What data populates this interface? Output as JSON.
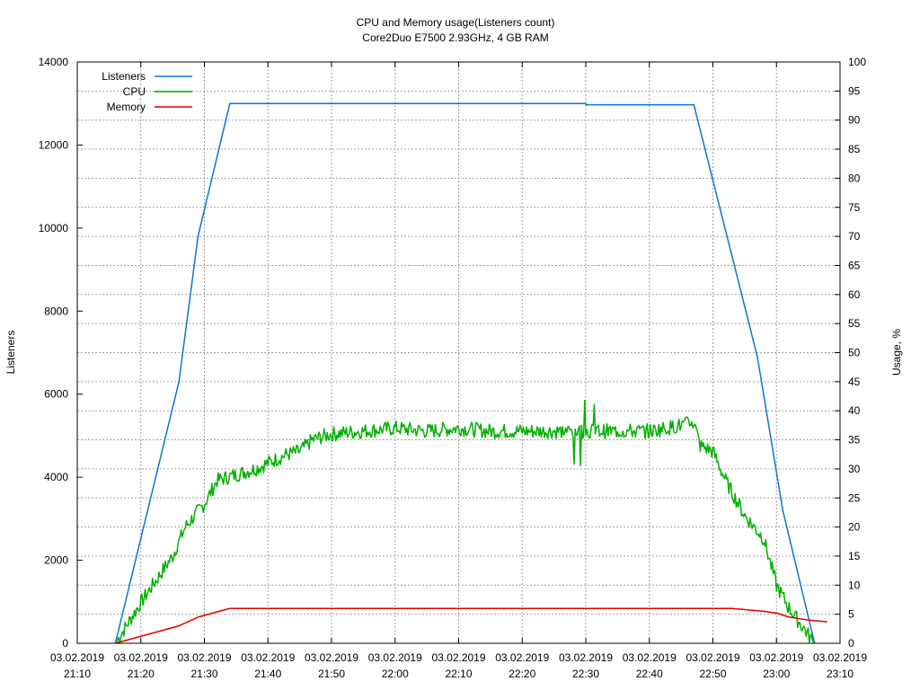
{
  "chart_data": {
    "type": "line",
    "title": "CPU and Memory usage(Listeners count)",
    "subtitle": "Core2Duo E7500 2.93GHz, 4 GB RAM",
    "ylabel": "Listeners",
    "y2label": "Usage, %",
    "x_time_range": [
      "21:10",
      "23:10"
    ],
    "x_ticks": [
      {
        "date": "03.02.2019",
        "time": "21:10"
      },
      {
        "date": "03.02.2019",
        "time": "21:20"
      },
      {
        "date": "03.02.2019",
        "time": "21:30"
      },
      {
        "date": "03.02.2019",
        "time": "21:40"
      },
      {
        "date": "03.02.2019",
        "time": "21:50"
      },
      {
        "date": "03.02.2019",
        "time": "22:00"
      },
      {
        "date": "03.02.2019",
        "time": "22:10"
      },
      {
        "date": "03.02.2019",
        "time": "22:20"
      },
      {
        "date": "03.02.2019",
        "time": "22:30"
      },
      {
        "date": "03.02.2019",
        "time": "22:40"
      },
      {
        "date": "03.02.2019",
        "time": "22:50"
      },
      {
        "date": "03.02.2019",
        "time": "23:00"
      },
      {
        "date": "03.02.2019",
        "time": "23:10"
      }
    ],
    "ylim": [
      0,
      14000
    ],
    "y_ticks": [
      "0",
      "2000",
      "4000",
      "6000",
      "8000",
      "10000",
      "12000",
      "14000"
    ],
    "y2lim": [
      0,
      100
    ],
    "y2_ticks": [
      "0",
      "5",
      "10",
      "15",
      "20",
      "25",
      "30",
      "35",
      "40",
      "45",
      "50",
      "55",
      "60",
      "65",
      "70",
      "75",
      "80",
      "85",
      "90",
      "95",
      "100"
    ],
    "grid": true,
    "legend_position": "top-left",
    "series": [
      {
        "name": "Listeners",
        "axis": "y",
        "color": "#0a74d8",
        "x": [
          "21:16",
          "21:26",
          "21:29",
          "21:34",
          "22:30",
          "22:30",
          "22:47",
          "22:57",
          "23:01",
          "23:06"
        ],
        "y": [
          0,
          6300,
          9800,
          13000,
          13000,
          12970,
          12970,
          6900,
          3200,
          0
        ]
      },
      {
        "name": "CPU",
        "axis": "y2",
        "color": "#00b000",
        "x": [
          "21:16",
          "21:20",
          "21:25",
          "21:27",
          "21:30",
          "21:32",
          "21:35",
          "21:38",
          "21:40",
          "21:43",
          "21:45",
          "21:47",
          "21:50",
          "21:55",
          "22:00",
          "22:05",
          "22:10",
          "22:15",
          "22:20",
          "22:25",
          "22:30",
          "22:35",
          "22:40",
          "22:45",
          "22:47",
          "22:48",
          "22:50",
          "22:52",
          "22:55",
          "22:58",
          "23:00",
          "23:02",
          "23:04",
          "23:06"
        ],
        "y": [
          0,
          7,
          15,
          20,
          24,
          28,
          29,
          30,
          31,
          32.5,
          33,
          35,
          36,
          36.5,
          37,
          36.5,
          37,
          36.5,
          36.5,
          36.5,
          36.5,
          36.5,
          36.5,
          37.5,
          38,
          34,
          33,
          28,
          22,
          18,
          10,
          6,
          3,
          0
        ]
      },
      {
        "name": "Memory",
        "axis": "y2",
        "color": "#e00000",
        "x": [
          "21:16",
          "21:26",
          "21:29",
          "21:34",
          "22:53",
          "22:55",
          "22:58",
          "23:00",
          "23:02",
          "23:05",
          "23:08"
        ],
        "y": [
          0,
          3.0,
          4.5,
          6.0,
          6.0,
          5.8,
          5.5,
          5.2,
          4.5,
          4.0,
          3.7
        ]
      }
    ]
  }
}
